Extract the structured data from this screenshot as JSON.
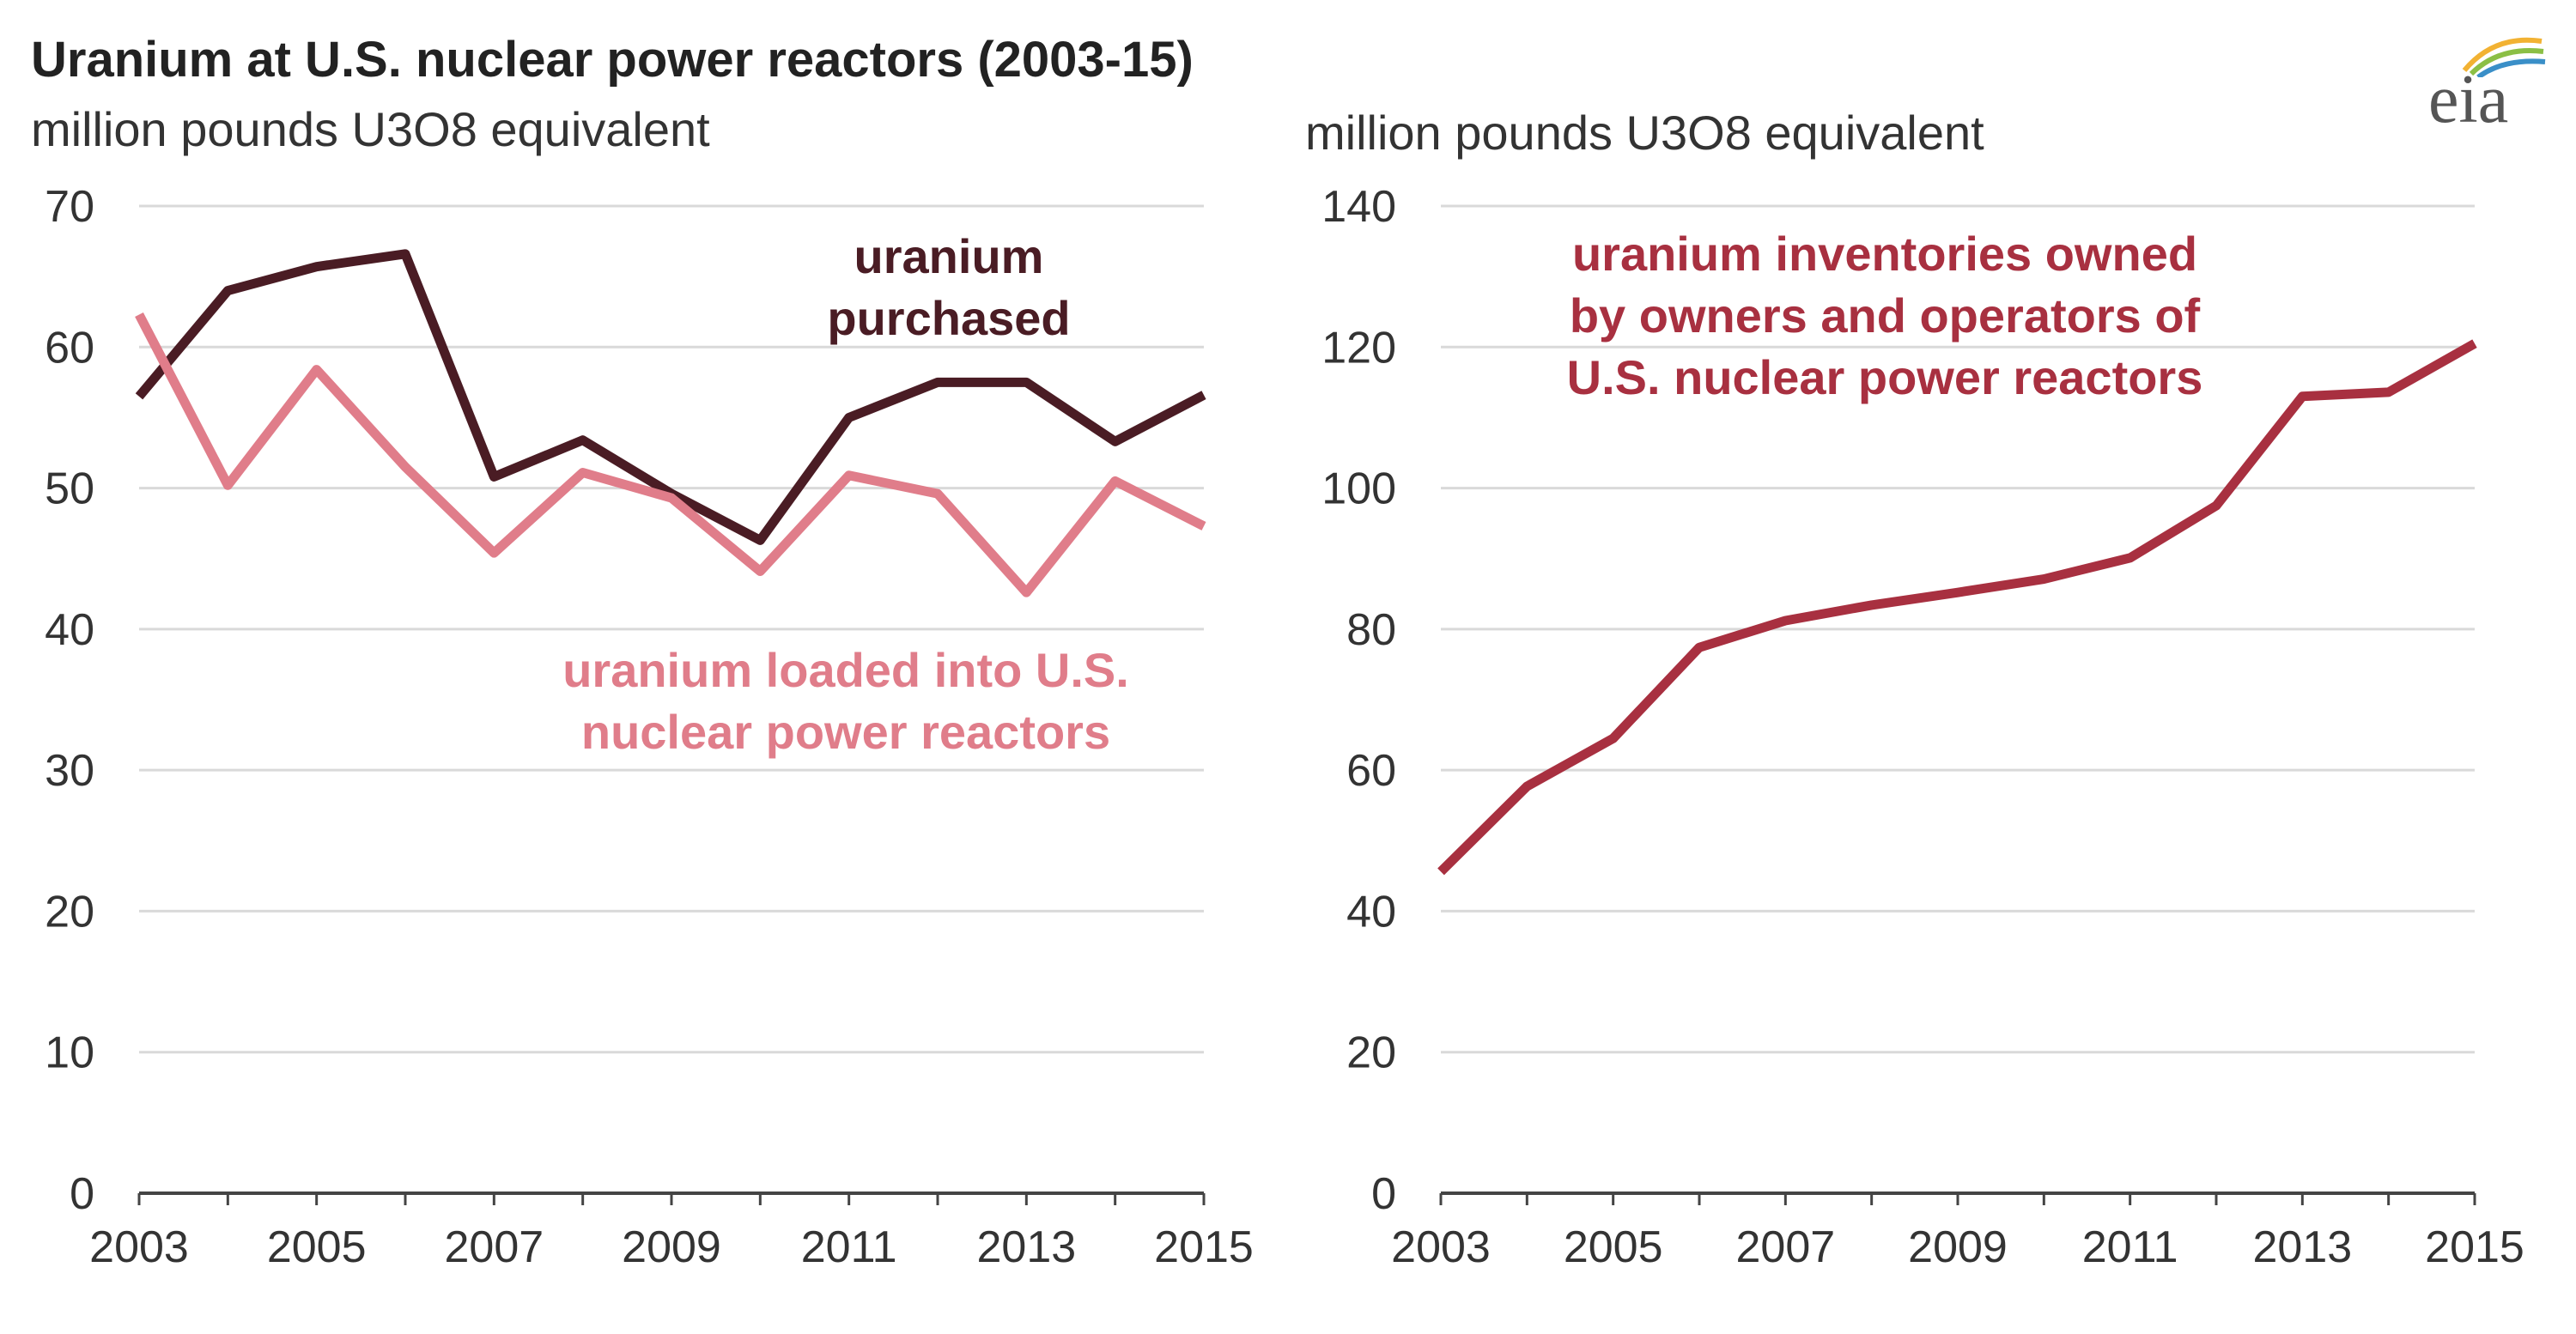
{
  "title": "Uranium at U.S. nuclear power reactors (2003-15)",
  "logo": {
    "text": "eia"
  },
  "colors": {
    "purchased": "#4a1c24",
    "loaded": "#e07d8a",
    "inventories": "#a83040",
    "grid": "#d9d9d9",
    "axis": "#444444"
  },
  "chart_data": [
    {
      "type": "line",
      "unit_label": "million pounds U3O8 equivalent",
      "x": [
        2003,
        2004,
        2005,
        2006,
        2007,
        2008,
        2009,
        2010,
        2011,
        2012,
        2013,
        2014,
        2015
      ],
      "x_ticks": [
        "2003",
        "2005",
        "2007",
        "2009",
        "2011",
        "2013",
        "2015"
      ],
      "y_ticks": [
        "0",
        "10",
        "20",
        "30",
        "40",
        "50",
        "60",
        "70"
      ],
      "ylim": [
        0,
        70
      ],
      "series": [
        {
          "name": "uranium purchased",
          "label_lines": [
            "uranium",
            "purchased"
          ],
          "color_key": "purchased",
          "values": [
            56.5,
            64.0,
            65.7,
            66.6,
            50.8,
            53.4,
            49.6,
            46.3,
            55.0,
            57.5,
            57.5,
            53.3,
            56.6
          ]
        },
        {
          "name": "uranium loaded into U.S. nuclear power reactors",
          "label_lines": [
            "uranium loaded into U.S.",
            "nuclear power reactors"
          ],
          "color_key": "loaded",
          "values": [
            62.3,
            50.2,
            58.4,
            51.5,
            45.4,
            51.1,
            49.3,
            44.1,
            50.9,
            49.6,
            42.6,
            50.5,
            47.3
          ]
        }
      ]
    },
    {
      "type": "line",
      "unit_label": "million pounds U3O8 equivalent",
      "x": [
        2003,
        2004,
        2005,
        2006,
        2007,
        2008,
        2009,
        2010,
        2011,
        2012,
        2013,
        2014,
        2015
      ],
      "x_ticks": [
        "2003",
        "2005",
        "2007",
        "2009",
        "2011",
        "2013",
        "2015"
      ],
      "y_ticks": [
        "0",
        "20",
        "40",
        "60",
        "80",
        "100",
        "120",
        "140"
      ],
      "ylim": [
        0,
        140
      ],
      "series": [
        {
          "name": "uranium inventories owned by owners and operators of U.S. nuclear power reactors",
          "label_lines": [
            "uranium inventories owned",
            "by owners and operators of",
            "U.S. nuclear power reactors"
          ],
          "color_key": "inventories",
          "values": [
            45.6,
            57.7,
            64.5,
            77.4,
            81.2,
            83.4,
            85.2,
            87.1,
            90.1,
            97.5,
            113.0,
            113.6,
            120.5
          ]
        }
      ]
    }
  ]
}
